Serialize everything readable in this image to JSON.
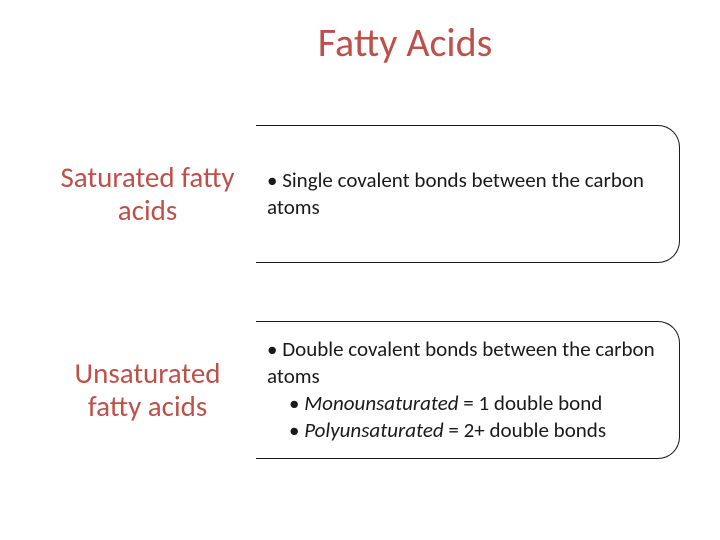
{
  "title": "Fatty Acids",
  "colors": {
    "accent": "#bd514a",
    "text": "#1a1a1a",
    "border": "#1a1a1a",
    "background": "#ffffff"
  },
  "typography": {
    "title_fontsize": 40,
    "label_fontsize": 29,
    "body_fontsize": 21,
    "font_family": "Calibri"
  },
  "rows": [
    {
      "label": "Saturated fatty acids",
      "bullets": [
        {
          "text": "• Single covalent bonds between the carbon atoms",
          "indent": 0,
          "italic_prefix": ""
        }
      ]
    },
    {
      "label": "Unsaturated fatty acids",
      "bullets": [
        {
          "text": "• Double covalent bonds between the carbon atoms",
          "indent": 0,
          "italic_prefix": ""
        },
        {
          "text_prefix": "• ",
          "italic": "Monounsaturated",
          "text_suffix": " = 1 double bond",
          "indent": 1
        },
        {
          "text_prefix": "• ",
          "italic": "Polyunsaturated",
          "text_suffix": " =  2+ double bonds",
          "indent": 1
        }
      ]
    }
  ]
}
